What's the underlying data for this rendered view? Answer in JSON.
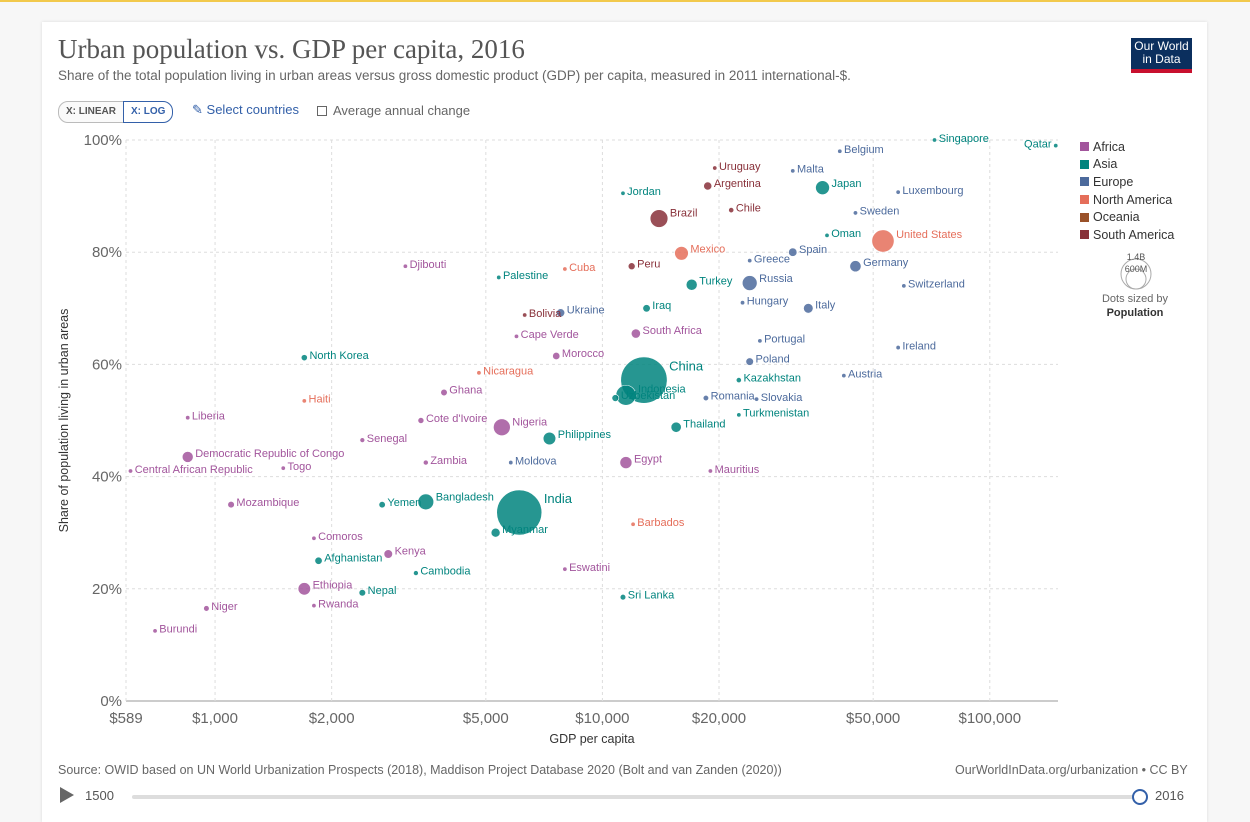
{
  "header": {
    "title": "Urban population vs. GDP per capita, 2016",
    "subtitle": "Share of the total population living in urban areas versus gross domestic product (GDP) per capita, measured in 2011 international-$.",
    "logo_line1": "Our World",
    "logo_line2": "in Data"
  },
  "controls": {
    "x_linear": "X: LINEAR",
    "x_log": "X: LOG",
    "select_countries": "Select countries",
    "avg_change": "Average annual change"
  },
  "colors": {
    "Africa": "#a2559c",
    "Asia": "#00847e",
    "Europe": "#4c6a9c",
    "North America": "#e56e5a",
    "Oceania": "#9a5129",
    "South America": "#883039"
  },
  "size_legend": {
    "max_label": "1.4B",
    "mid_label": "600M",
    "note_line1": "Dots sized by",
    "note_line2": "Population"
  },
  "footer": {
    "source": "Source: OWID based on UN World Urbanization Prospects (2018), Maddison Project Database 2020 (Bolt and van Zanden (2020))",
    "url": "OurWorldInData.org/urbanization • CC BY"
  },
  "timeline": {
    "start": "1500",
    "end": "2016"
  },
  "chart_data": {
    "type": "scatter",
    "x_scale": "log",
    "xlabel": "GDP per capita",
    "ylabel": "Share of population living in urban areas",
    "xlim": [
      589,
      150000
    ],
    "ylim": [
      0,
      100
    ],
    "x_ticks": [
      {
        "v": 589,
        "label": "$589"
      },
      {
        "v": 1000,
        "label": "$1,000"
      },
      {
        "v": 2000,
        "label": "$2,000"
      },
      {
        "v": 5000,
        "label": "$5,000"
      },
      {
        "v": 10000,
        "label": "$10,000"
      },
      {
        "v": 20000,
        "label": "$20,000"
      },
      {
        "v": 50000,
        "label": "$50,000"
      },
      {
        "v": 100000,
        "label": "$100,000"
      }
    ],
    "y_ticks": [
      {
        "v": 0,
        "label": "0%"
      },
      {
        "v": 20,
        "label": "20%"
      },
      {
        "v": 40,
        "label": "40%"
      },
      {
        "v": 60,
        "label": "60%"
      },
      {
        "v": 80,
        "label": "80%"
      },
      {
        "v": 100,
        "label": "100%"
      }
    ],
    "grid": true,
    "legend": [
      "Africa",
      "Asia",
      "Europe",
      "North America",
      "Oceania",
      "South America"
    ],
    "legend_position": "right",
    "points": [
      {
        "name": "Qatar",
        "region": "Asia",
        "x": 148000,
        "y": 99,
        "pop": 2.6
      },
      {
        "name": "Singapore",
        "region": "Asia",
        "x": 72000,
        "y": 100,
        "pop": 5.6
      },
      {
        "name": "Belgium",
        "region": "Europe",
        "x": 41000,
        "y": 98,
        "pop": 11.4
      },
      {
        "name": "Uruguay",
        "region": "South America",
        "x": 19500,
        "y": 95,
        "pop": 3.4
      },
      {
        "name": "Malta",
        "region": "Europe",
        "x": 31000,
        "y": 94.5,
        "pop": 0.4
      },
      {
        "name": "Japan",
        "region": "Asia",
        "x": 37000,
        "y": 91.5,
        "pop": 127
      },
      {
        "name": "Argentina",
        "region": "South America",
        "x": 18700,
        "y": 91.8,
        "pop": 43.6
      },
      {
        "name": "Luxembourg",
        "region": "Europe",
        "x": 58000,
        "y": 90.7,
        "pop": 0.58
      },
      {
        "name": "Jordan",
        "region": "Asia",
        "x": 11300,
        "y": 90.5,
        "pop": 9.5
      },
      {
        "name": "Sweden",
        "region": "Europe",
        "x": 45000,
        "y": 87,
        "pop": 9.9
      },
      {
        "name": "Chile",
        "region": "South America",
        "x": 21500,
        "y": 87.5,
        "pop": 17.9
      },
      {
        "name": "Brazil",
        "region": "South America",
        "x": 14000,
        "y": 86,
        "pop": 206
      },
      {
        "name": "United States",
        "region": "North America",
        "x": 53000,
        "y": 82,
        "pop": 323
      },
      {
        "name": "Oman",
        "region": "Asia",
        "x": 38000,
        "y": 83,
        "pop": 4.4
      },
      {
        "name": "Spain",
        "region": "Europe",
        "x": 31000,
        "y": 80,
        "pop": 46.5
      },
      {
        "name": "Mexico",
        "region": "North America",
        "x": 16000,
        "y": 79.8,
        "pop": 123
      },
      {
        "name": "Greece",
        "region": "Europe",
        "x": 24000,
        "y": 78.5,
        "pop": 10.8
      },
      {
        "name": "Germany",
        "region": "Europe",
        "x": 45000,
        "y": 77.5,
        "pop": 82
      },
      {
        "name": "Djibouti",
        "region": "Africa",
        "x": 3100,
        "y": 77.5,
        "pop": 0.9
      },
      {
        "name": "Cuba",
        "region": "North America",
        "x": 8000,
        "y": 77,
        "pop": 11.4
      },
      {
        "name": "Peru",
        "region": "South America",
        "x": 11900,
        "y": 77.5,
        "pop": 31.8
      },
      {
        "name": "Palestine",
        "region": "Asia",
        "x": 5400,
        "y": 75.5,
        "pop": 4.6
      },
      {
        "name": "Russia",
        "region": "Europe",
        "x": 24000,
        "y": 74.5,
        "pop": 144
      },
      {
        "name": "Turkey",
        "region": "Asia",
        "x": 17000,
        "y": 74.2,
        "pop": 79.8
      },
      {
        "name": "Switzerland",
        "region": "Europe",
        "x": 60000,
        "y": 74,
        "pop": 8.4
      },
      {
        "name": "Hungary",
        "region": "Europe",
        "x": 23000,
        "y": 71,
        "pop": 9.8
      },
      {
        "name": "Italy",
        "region": "Europe",
        "x": 34000,
        "y": 70,
        "pop": 60.6
      },
      {
        "name": "Iraq",
        "region": "Asia",
        "x": 13000,
        "y": 70,
        "pop": 36.6
      },
      {
        "name": "Ukraine",
        "region": "Europe",
        "x": 7800,
        "y": 69.2,
        "pop": 44.4
      },
      {
        "name": "Bolivia",
        "region": "South America",
        "x": 6300,
        "y": 68.8,
        "pop": 10.9
      },
      {
        "name": "South Africa",
        "region": "Africa",
        "x": 12200,
        "y": 65.5,
        "pop": 55.9
      },
      {
        "name": "Cape Verde",
        "region": "Africa",
        "x": 6000,
        "y": 65,
        "pop": 0.54
      },
      {
        "name": "Portugal",
        "region": "Europe",
        "x": 25500,
        "y": 64.2,
        "pop": 10.3
      },
      {
        "name": "Ireland",
        "region": "Europe",
        "x": 58000,
        "y": 63,
        "pop": 4.7
      },
      {
        "name": "North Korea",
        "region": "Asia",
        "x": 1700,
        "y": 61.2,
        "pop": 25.4
      },
      {
        "name": "Morocco",
        "region": "Africa",
        "x": 7600,
        "y": 61.5,
        "pop": 35.3
      },
      {
        "name": "Poland",
        "region": "Europe",
        "x": 24000,
        "y": 60.5,
        "pop": 38
      },
      {
        "name": "China",
        "region": "Asia",
        "x": 12800,
        "y": 57.2,
        "pop": 1400
      },
      {
        "name": "Nicaragua",
        "region": "North America",
        "x": 4800,
        "y": 58.5,
        "pop": 6.1
      },
      {
        "name": "Austria",
        "region": "Europe",
        "x": 42000,
        "y": 58,
        "pop": 8.7
      },
      {
        "name": "Kazakhstan",
        "region": "Asia",
        "x": 22500,
        "y": 57.2,
        "pop": 17.8
      },
      {
        "name": "Indonesia",
        "region": "Asia",
        "x": 11500,
        "y": 54.5,
        "pop": 261
      },
      {
        "name": "Ghana",
        "region": "Africa",
        "x": 3900,
        "y": 55,
        "pop": 28.2
      },
      {
        "name": "Haiti",
        "region": "North America",
        "x": 1700,
        "y": 53.5,
        "pop": 10.8
      },
      {
        "name": "Romania",
        "region": "Europe",
        "x": 18500,
        "y": 54,
        "pop": 19.8
      },
      {
        "name": "Slovakia",
        "region": "Europe",
        "x": 25000,
        "y": 53.8,
        "pop": 5.4
      },
      {
        "name": "Uzbekistan",
        "region": "Asia",
        "x": 10800,
        "y": 54,
        "pop": 31.4
      },
      {
        "name": "Turkmenistan",
        "region": "Asia",
        "x": 22500,
        "y": 51,
        "pop": 5.7
      },
      {
        "name": "Liberia",
        "region": "Africa",
        "x": 850,
        "y": 50.5,
        "pop": 4.6
      },
      {
        "name": "Cote d'Ivoire",
        "region": "Africa",
        "x": 3400,
        "y": 50,
        "pop": 23.7
      },
      {
        "name": "Nigeria",
        "region": "Africa",
        "x": 5500,
        "y": 48.8,
        "pop": 186
      },
      {
        "name": "Thailand",
        "region": "Asia",
        "x": 15500,
        "y": 48.8,
        "pop": 68.9
      },
      {
        "name": "Philippines",
        "region": "Asia",
        "x": 7300,
        "y": 46.8,
        "pop": 103
      },
      {
        "name": "Senegal",
        "region": "Africa",
        "x": 2400,
        "y": 46.5,
        "pop": 15.4
      },
      {
        "name": "Democratic Republic of Congo",
        "region": "Africa",
        "x": 850,
        "y": 43.5,
        "pop": 78.7
      },
      {
        "name": "Egypt",
        "region": "Africa",
        "x": 11500,
        "y": 42.5,
        "pop": 94.4
      },
      {
        "name": "Zambia",
        "region": "Africa",
        "x": 3500,
        "y": 42.5,
        "pop": 16.6
      },
      {
        "name": "Moldova",
        "region": "Europe",
        "x": 5800,
        "y": 42.5,
        "pop": 3.5
      },
      {
        "name": "Togo",
        "region": "Africa",
        "x": 1500,
        "y": 41.5,
        "pop": 7.6
      },
      {
        "name": "Central African Republic",
        "region": "Africa",
        "x": 605,
        "y": 41,
        "pop": 4.6
      },
      {
        "name": "Mauritius",
        "region": "Africa",
        "x": 19000,
        "y": 41,
        "pop": 1.26
      },
      {
        "name": "Mozambique",
        "region": "Africa",
        "x": 1100,
        "y": 35,
        "pop": 28.8
      },
      {
        "name": "Yemen",
        "region": "Asia",
        "x": 2700,
        "y": 35,
        "pop": 27.2
      },
      {
        "name": "Bangladesh",
        "region": "Asia",
        "x": 3500,
        "y": 35.5,
        "pop": 163
      },
      {
        "name": "India",
        "region": "Asia",
        "x": 6100,
        "y": 33.6,
        "pop": 1324
      },
      {
        "name": "Myanmar",
        "region": "Asia",
        "x": 5300,
        "y": 30,
        "pop": 52.9
      },
      {
        "name": "Barbados",
        "region": "North America",
        "x": 12000,
        "y": 31.5,
        "pop": 0.28
      },
      {
        "name": "Comoros",
        "region": "Africa",
        "x": 1800,
        "y": 29,
        "pop": 0.8
      },
      {
        "name": "Kenya",
        "region": "Africa",
        "x": 2800,
        "y": 26.2,
        "pop": 48.5
      },
      {
        "name": "Afghanistan",
        "region": "Asia",
        "x": 1850,
        "y": 25,
        "pop": 35.4
      },
      {
        "name": "Eswatini",
        "region": "Africa",
        "x": 8000,
        "y": 23.5,
        "pop": 1.3
      },
      {
        "name": "Cambodia",
        "region": "Asia",
        "x": 3300,
        "y": 22.8,
        "pop": 15.8
      },
      {
        "name": "Ethiopia",
        "region": "Africa",
        "x": 1700,
        "y": 20,
        "pop": 102
      },
      {
        "name": "Nepal",
        "region": "Asia",
        "x": 2400,
        "y": 19.3,
        "pop": 28.9
      },
      {
        "name": "Sri Lanka",
        "region": "Asia",
        "x": 11300,
        "y": 18.5,
        "pop": 20.8
      },
      {
        "name": "Rwanda",
        "region": "Africa",
        "x": 1800,
        "y": 17,
        "pop": 11.9
      },
      {
        "name": "Niger",
        "region": "Africa",
        "x": 950,
        "y": 16.5,
        "pop": 20.7
      },
      {
        "name": "Burundi",
        "region": "Africa",
        "x": 700,
        "y": 12.5,
        "pop": 10.5
      }
    ]
  }
}
